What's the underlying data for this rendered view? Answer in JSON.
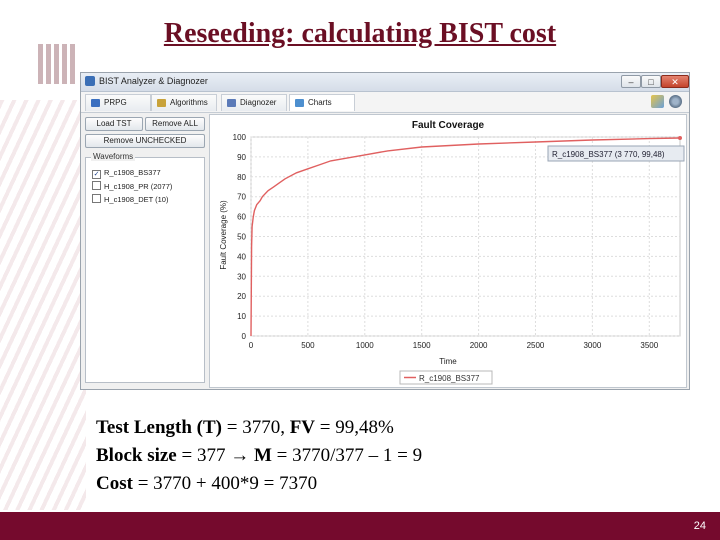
{
  "slide": {
    "title": "Reseeding: calculating BIST cost",
    "page_number": "24",
    "lines": [
      {
        "bold": "Test Length (T)",
        "rest": " = 3770, ",
        "bold2": "FV",
        "rest2": " = 99,48%"
      },
      {
        "bold": "Block size",
        "rest": " = 377 ",
        "arrow": "→",
        "bold2": " M",
        "rest2": " = 3770/377 – 1 = 9"
      },
      {
        "bold": "Cost",
        "rest": " = 3770 + 400*9 = 7370",
        "bold2": "",
        "rest2": ""
      }
    ]
  },
  "window": {
    "title": "BIST Analyzer & Diagnozer",
    "controls": {
      "minimize": "–",
      "maximize": "□",
      "close": "✕"
    }
  },
  "tabs": [
    {
      "label": "PRPG",
      "icon": "prpg-icon",
      "color": "#3a6fc0"
    },
    {
      "label": "Algorithms",
      "icon": "algorithms-icon",
      "color": "#c8a23a"
    },
    {
      "label": "Diagnozer",
      "icon": "diagnozer-icon",
      "color": "#5b7ab8"
    },
    {
      "label": "Charts",
      "icon": "charts-icon",
      "color": "#4d8fcf"
    }
  ],
  "left_panel": {
    "load_button": "Load TST",
    "remove_all_button": "Remove ALL",
    "remove_unchecked_button": "Remove UNCHECKED",
    "waveforms_label": "Waveforms",
    "waveforms": [
      {
        "label": "R_c1908_BS377",
        "checked": true
      },
      {
        "label": "H_c1908_PR (2077)",
        "checked": false
      },
      {
        "label": "H_c1908_DET (10)",
        "checked": false
      }
    ]
  },
  "chart_data": {
    "type": "line",
    "title": "Fault Coverage",
    "xlabel": "Time",
    "ylabel": "Fault Coverage (%)",
    "xlim": [
      0,
      3770
    ],
    "ylim": [
      0,
      100
    ],
    "xticks": [
      0,
      500,
      1000,
      1500,
      2000,
      2500,
      3000,
      3500
    ],
    "yticks": [
      0,
      10,
      20,
      30,
      40,
      50,
      60,
      70,
      80,
      90,
      100
    ],
    "series": [
      {
        "name": "R_c1908_BS377",
        "color": "#e06060",
        "x": [
          0,
          5,
          10,
          20,
          30,
          50,
          80,
          100,
          150,
          200,
          250,
          300,
          400,
          500,
          600,
          700,
          800,
          900,
          1000,
          1200,
          1500,
          2000,
          2500,
          3000,
          3500,
          3770
        ],
        "y": [
          0,
          45,
          55,
          60,
          63,
          66,
          68,
          70,
          73,
          75,
          77,
          79,
          82,
          84,
          86,
          88,
          89,
          90,
          91,
          93,
          95,
          96.5,
          97.5,
          98.5,
          99.2,
          99.48
        ]
      }
    ],
    "tooltip": "R_c1908_BS377 (3 770, 99,48)",
    "legend_position": "bottom",
    "grid": true
  }
}
